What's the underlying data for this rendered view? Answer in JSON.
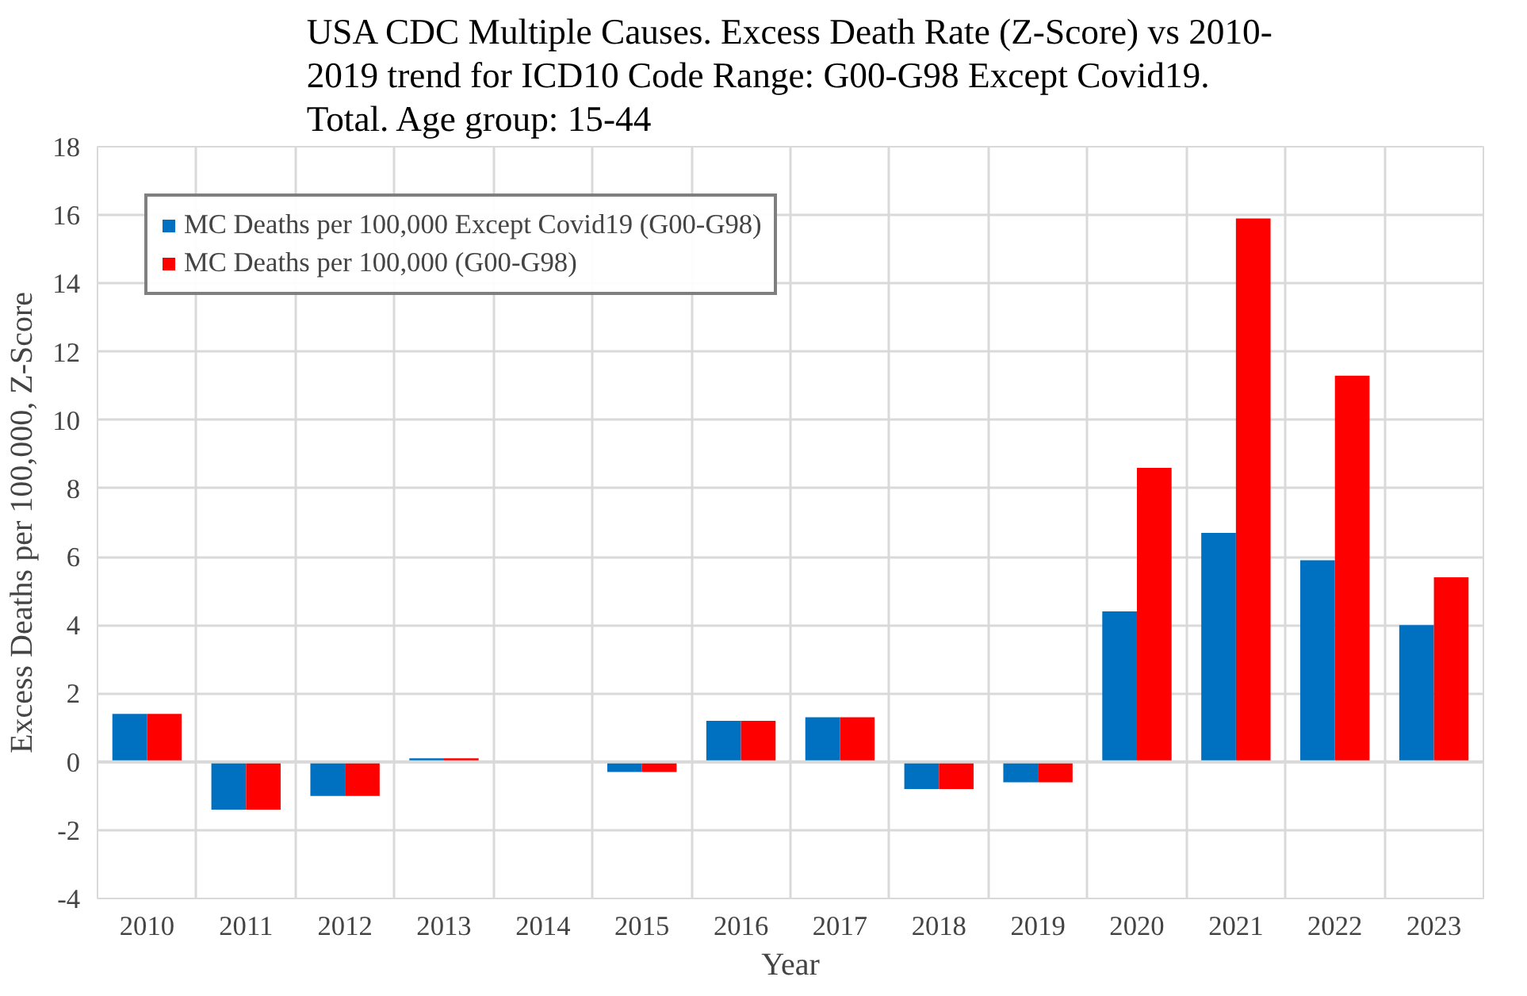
{
  "chart_data": {
    "type": "bar",
    "title": "USA CDC Multiple Causes. Excess Death Rate (Z-Score) vs 2010-\n2019 trend for ICD10 Code Range: G00-G98 Except Covid19.\nTotal. Age group: 15-44",
    "xlabel": "Year",
    "ylabel": "Excess Deaths per 100,000, Z-Score",
    "categories": [
      "2010",
      "2011",
      "2012",
      "2013",
      "2014",
      "2015",
      "2016",
      "2017",
      "2018",
      "2019",
      "2020",
      "2021",
      "2022",
      "2023"
    ],
    "series": [
      {
        "name": "MC Deaths per 100,000 Except Covid19 (G00-G98)",
        "color": "#0070c0",
        "values": [
          1.4,
          -1.4,
          -1.0,
          0.1,
          0,
          -0.3,
          1.2,
          1.3,
          -0.8,
          -0.6,
          4.4,
          6.7,
          5.9,
          4.0
        ]
      },
      {
        "name": "MC Deaths per 100,000 (G00-G98)",
        "color": "#ff0000",
        "values": [
          1.4,
          -1.4,
          -1.0,
          0.1,
          0,
          -0.3,
          1.2,
          1.3,
          -0.8,
          -0.6,
          8.6,
          15.9,
          11.3,
          5.4
        ]
      }
    ],
    "ylim": [
      -4,
      18
    ],
    "yticks": [
      -4,
      -2,
      0,
      2,
      4,
      6,
      8,
      10,
      12,
      14,
      16,
      18
    ],
    "grid": true,
    "legend": "top left"
  }
}
